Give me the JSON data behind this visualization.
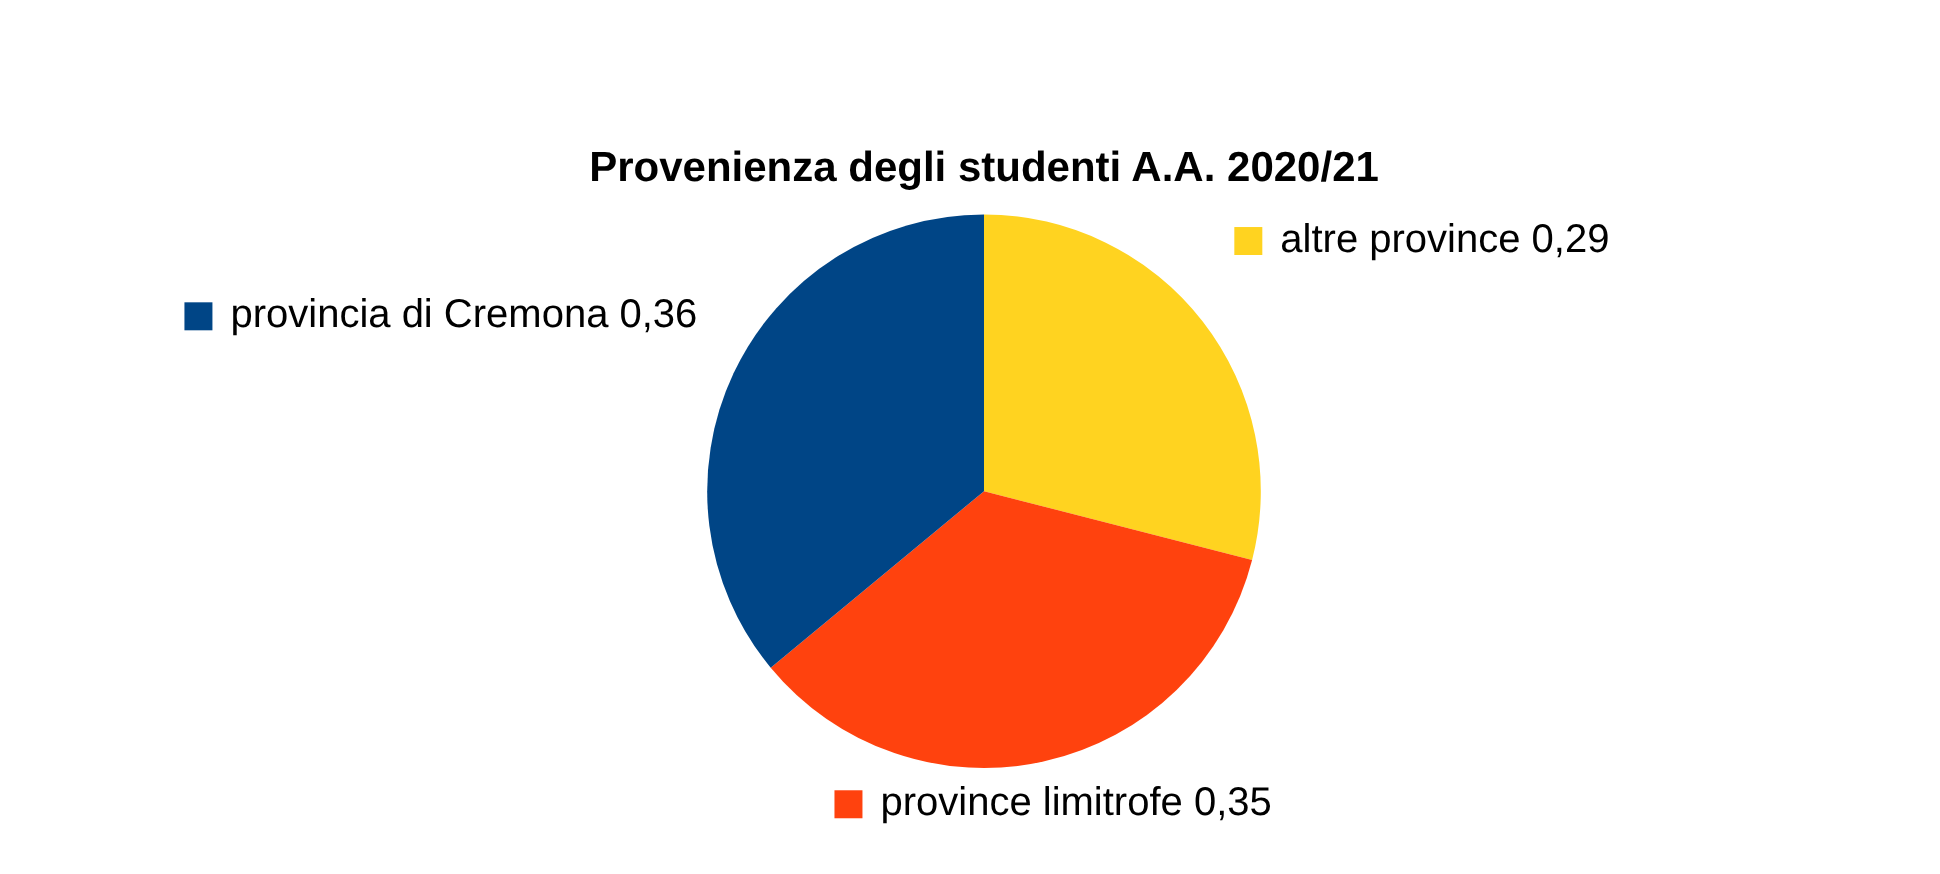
{
  "chart_data": {
    "type": "pie",
    "title": "Provenienza degli studenti A.A. 2020/21",
    "categories": [
      "altre province",
      "province limitrofe",
      "provincia di Cremona"
    ],
    "values": [
      0.29,
      0.35,
      0.36
    ],
    "value_labels": [
      "0,29",
      "0,35",
      "0,36"
    ],
    "colors": [
      "#ffd320",
      "#ff420e",
      "#004586"
    ],
    "legend": "bottom left"
  }
}
